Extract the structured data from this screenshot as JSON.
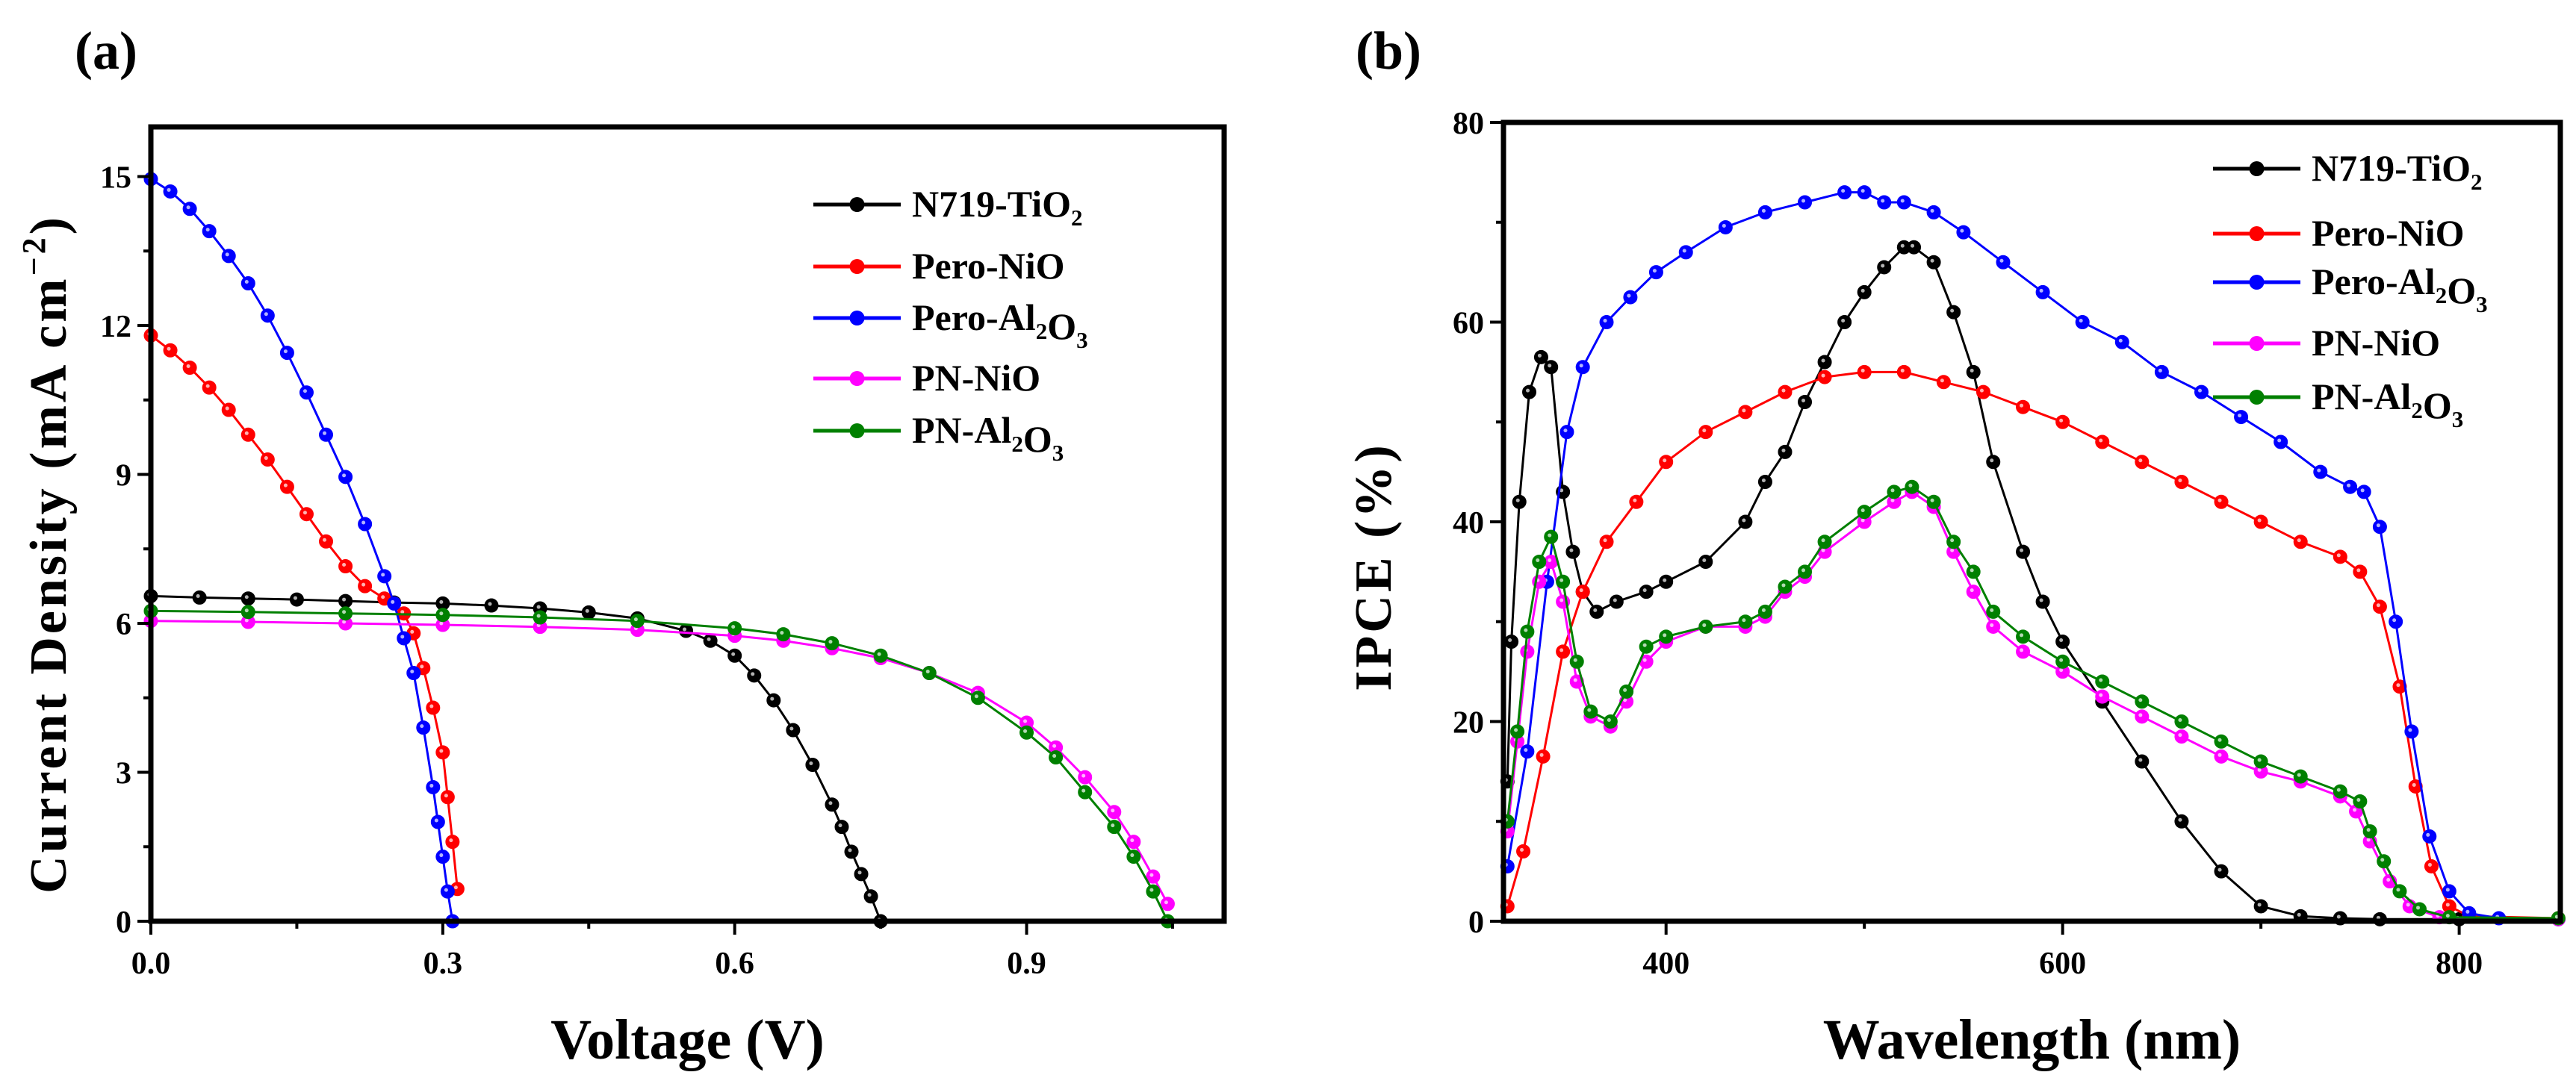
{
  "chart_data": [
    {
      "panel_label": "(a)",
      "type": "line",
      "title": "",
      "xlabel": "Voltage (V)",
      "ylabel_main": "Current Density (mA cm",
      "ylabel_sup": "−2",
      "ylabel_end": ")",
      "xlim": [
        0,
        1.103
      ],
      "ylim": [
        0,
        16
      ],
      "xticks": [
        0.0,
        0.3,
        0.6,
        0.9
      ],
      "xtick_labels": [
        "0.0",
        "0.3",
        "0.6",
        "0.9"
      ],
      "xminor": 0.15,
      "yticks": [
        0,
        3,
        6,
        9,
        12,
        15
      ],
      "ytick_labels": [
        "0",
        "3",
        "6",
        "9",
        "12",
        "15"
      ],
      "yminor": 1.5,
      "grid": false,
      "legend_position": "top-right",
      "series": [
        {
          "name": "N719-TiO2",
          "color": "#000000",
          "x": [
            0,
            0.05,
            0.1,
            0.15,
            0.2,
            0.25,
            0.3,
            0.35,
            0.4,
            0.45,
            0.5,
            0.55,
            0.575,
            0.6,
            0.62,
            0.64,
            0.66,
            0.68,
            0.7,
            0.71,
            0.72,
            0.73,
            0.74,
            0.75
          ],
          "y": [
            6.55,
            6.52,
            6.5,
            6.48,
            6.45,
            6.42,
            6.4,
            6.36,
            6.3,
            6.22,
            6.1,
            5.85,
            5.65,
            5.35,
            4.95,
            4.45,
            3.85,
            3.15,
            2.35,
            1.9,
            1.4,
            0.95,
            0.5,
            0.0
          ]
        },
        {
          "name": "Pero-NiO",
          "color": "#ff0000",
          "x": [
            0,
            0.02,
            0.04,
            0.06,
            0.08,
            0.1,
            0.12,
            0.14,
            0.16,
            0.18,
            0.2,
            0.22,
            0.24,
            0.26,
            0.27,
            0.28,
            0.29,
            0.3,
            0.305,
            0.31,
            0.315
          ],
          "y": [
            11.8,
            11.5,
            11.15,
            10.75,
            10.3,
            9.8,
            9.3,
            8.75,
            8.2,
            7.65,
            7.15,
            6.75,
            6.5,
            6.2,
            5.8,
            5.1,
            4.3,
            3.4,
            2.5,
            1.6,
            0.65
          ]
        },
        {
          "name": "Pero-Al2O3",
          "color": "#0000ff",
          "x": [
            0,
            0.02,
            0.04,
            0.06,
            0.08,
            0.1,
            0.12,
            0.14,
            0.16,
            0.18,
            0.2,
            0.22,
            0.24,
            0.25,
            0.26,
            0.27,
            0.28,
            0.29,
            0.295,
            0.3,
            0.305,
            0.31
          ],
          "y": [
            14.95,
            14.7,
            14.35,
            13.9,
            13.4,
            12.85,
            12.2,
            11.45,
            10.65,
            9.8,
            8.95,
            8.0,
            6.95,
            6.4,
            5.7,
            5.0,
            3.9,
            2.7,
            2.0,
            1.3,
            0.6,
            0.0
          ]
        },
        {
          "name": "PN-NiO",
          "color": "#ff00ff",
          "x": [
            0,
            0.1,
            0.2,
            0.3,
            0.4,
            0.5,
            0.6,
            0.65,
            0.7,
            0.75,
            0.8,
            0.85,
            0.9,
            0.93,
            0.96,
            0.99,
            1.01,
            1.03,
            1.045
          ],
          "y": [
            6.05,
            6.03,
            6.0,
            5.97,
            5.93,
            5.87,
            5.75,
            5.65,
            5.5,
            5.3,
            5.0,
            4.6,
            4.0,
            3.5,
            2.9,
            2.2,
            1.6,
            0.9,
            0.35
          ]
        },
        {
          "name": "PN-Al2O3",
          "color": "#008000",
          "x": [
            0,
            0.1,
            0.2,
            0.3,
            0.4,
            0.5,
            0.6,
            0.65,
            0.7,
            0.75,
            0.8,
            0.85,
            0.9,
            0.93,
            0.96,
            0.99,
            1.01,
            1.03,
            1.045
          ],
          "y": [
            6.25,
            6.23,
            6.2,
            6.17,
            6.12,
            6.05,
            5.9,
            5.78,
            5.6,
            5.35,
            5.0,
            4.5,
            3.8,
            3.3,
            2.6,
            1.9,
            1.3,
            0.6,
            0.0
          ]
        }
      ]
    },
    {
      "panel_label": "(b)",
      "type": "line",
      "title": "",
      "xlabel": "Wavelength (nm)",
      "ylabel": "IPCE (%)",
      "xlim": [
        318,
        851
      ],
      "ylim": [
        0,
        80
      ],
      "xticks": [
        400,
        600,
        800
      ],
      "xtick_labels": [
        "400",
        "600",
        "800"
      ],
      "xminor": 100,
      "yticks": [
        0,
        20,
        40,
        60,
        80
      ],
      "ytick_labels": [
        "0",
        "20",
        "40",
        "60",
        "80"
      ],
      "yminor": 10,
      "grid": false,
      "legend_position": "top-right",
      "series": [
        {
          "name": "N719-TiO2",
          "color": "#000000",
          "x": [
            320,
            322,
            326,
            331,
            337,
            342,
            348,
            353,
            358,
            365,
            375,
            390,
            400,
            420,
            440,
            450,
            460,
            470,
            480,
            490,
            500,
            510,
            520,
            525,
            535,
            545,
            555,
            565,
            580,
            590,
            600,
            620,
            640,
            660,
            680,
            700,
            720,
            740,
            760,
            800,
            850
          ],
          "y": [
            14,
            28,
            42,
            53,
            56.5,
            55.5,
            43,
            37,
            33,
            31,
            32,
            33,
            34,
            36,
            40,
            44,
            47,
            52,
            56,
            60,
            63,
            65.5,
            67.5,
            67.5,
            66,
            61,
            55,
            46,
            37,
            32,
            28,
            22,
            16,
            10,
            5,
            1.5,
            0.5,
            0.3,
            0.2,
            0.2,
            0.2
          ]
        },
        {
          "name": "Pero-NiO",
          "color": "#ff0000",
          "x": [
            320,
            328,
            338,
            348,
            358,
            370,
            385,
            400,
            420,
            440,
            460,
            480,
            500,
            520,
            540,
            560,
            580,
            600,
            620,
            640,
            660,
            680,
            700,
            720,
            740,
            750,
            760,
            770,
            778,
            786,
            795,
            805,
            850
          ],
          "y": [
            1.5,
            7,
            16.5,
            27,
            33,
            38,
            42,
            46,
            49,
            51,
            53,
            54.5,
            55,
            55,
            54,
            53,
            51.5,
            50,
            48,
            46,
            44,
            42,
            40,
            38,
            36.5,
            35,
            31.5,
            23.5,
            13.5,
            5.5,
            1.5,
            0.5,
            0.3
          ]
        },
        {
          "name": "Pero-Al2O3",
          "color": "#0000ff",
          "x": [
            320,
            330,
            340,
            350,
            358,
            370,
            382,
            395,
            410,
            430,
            450,
            470,
            490,
            500,
            510,
            520,
            535,
            550,
            570,
            590,
            610,
            630,
            650,
            670,
            690,
            710,
            730,
            745,
            752,
            760,
            768,
            776,
            785,
            795,
            805,
            820,
            850
          ],
          "y": [
            5.5,
            17,
            34,
            49,
            55.5,
            60,
            62.5,
            65,
            67,
            69.5,
            71,
            72,
            73,
            73,
            72,
            72,
            71,
            69,
            66,
            63,
            60,
            58,
            55,
            53,
            50.5,
            48,
            45,
            43.5,
            43,
            39.5,
            30,
            19,
            8.5,
            3,
            0.8,
            0.3,
            0.2
          ]
        },
        {
          "name": "PN-NiO",
          "color": "#ff00ff",
          "x": [
            320,
            325,
            330,
            336,
            342,
            348,
            355,
            362,
            372,
            380,
            390,
            400,
            420,
            440,
            450,
            460,
            470,
            480,
            500,
            515,
            524,
            535,
            545,
            555,
            565,
            580,
            600,
            620,
            640,
            660,
            680,
            700,
            720,
            740,
            748,
            755,
            765,
            775,
            790,
            850
          ],
          "y": [
            9,
            18,
            27,
            34,
            36,
            32,
            24,
            20.5,
            19.5,
            22,
            26,
            28,
            29.5,
            29.5,
            30.5,
            33,
            34.5,
            37,
            40,
            42,
            43,
            41.5,
            37,
            33,
            29.5,
            27,
            25,
            22.5,
            20.5,
            18.5,
            16.5,
            15,
            14,
            12.5,
            11,
            8,
            4,
            1.5,
            0.4,
            0.2
          ]
        },
        {
          "name": "PN-Al2O3",
          "color": "#008000",
          "x": [
            320,
            325,
            330,
            336,
            342,
            348,
            355,
            362,
            372,
            380,
            390,
            400,
            420,
            440,
            450,
            460,
            470,
            480,
            500,
            515,
            524,
            535,
            545,
            555,
            565,
            580,
            600,
            620,
            640,
            660,
            680,
            700,
            720,
            740,
            750,
            755,
            762,
            770,
            780,
            795,
            850
          ],
          "y": [
            10,
            19,
            29,
            36,
            38.5,
            34,
            26,
            21,
            20,
            23,
            27.5,
            28.5,
            29.5,
            30,
            31,
            33.5,
            35,
            38,
            41,
            43,
            43.5,
            42,
            38,
            35,
            31,
            28.5,
            26,
            24,
            22,
            20,
            18,
            16,
            14.5,
            13,
            12,
            9,
            6,
            3,
            1.2,
            0.4,
            0.3
          ]
        }
      ]
    }
  ]
}
